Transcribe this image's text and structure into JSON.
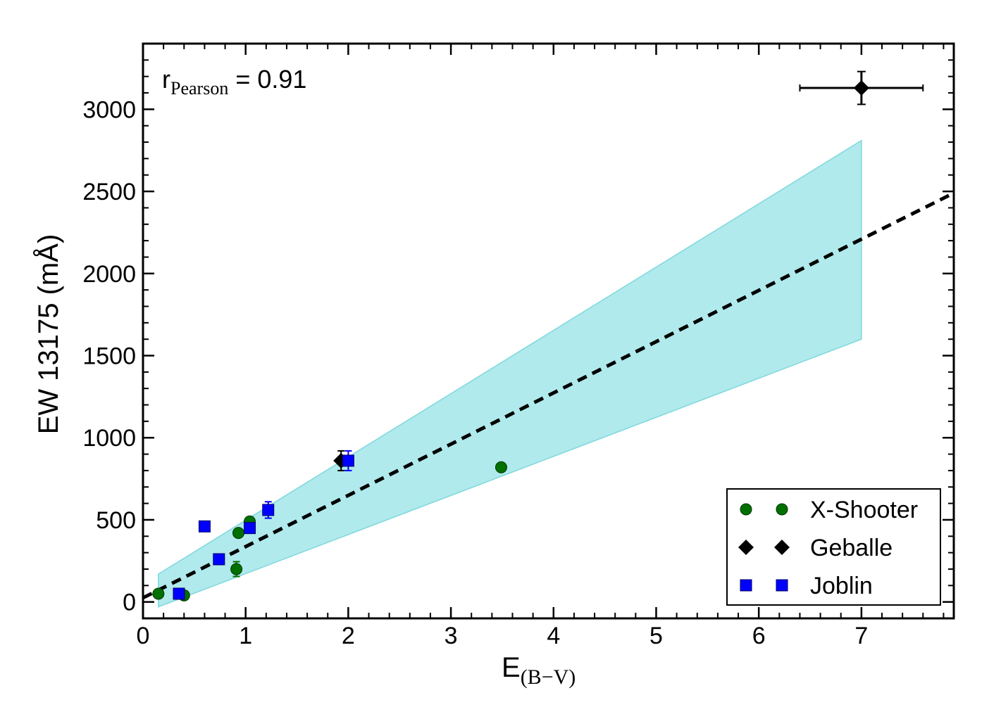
{
  "chart_data": {
    "type": "scatter",
    "xlim": [
      0,
      7.9
    ],
    "ylim": [
      -100,
      3400
    ],
    "x_ticks": [
      0,
      1,
      2,
      3,
      4,
      5,
      6,
      7
    ],
    "x_tick_labels": [
      "0",
      "1",
      "2",
      "3",
      "4",
      "5",
      "6",
      "7"
    ],
    "y_ticks": [
      0,
      500,
      1000,
      1500,
      2000,
      2500,
      3000
    ],
    "y_tick_labels": [
      "0",
      "500",
      "1000",
      "1500",
      "2000",
      "2500",
      "3000"
    ],
    "xlabel": {
      "main": "E",
      "sub": "(B−V)"
    },
    "ylabel": "EW 13175 (mÅ)",
    "annotation": {
      "r": "r",
      "sub": "Pearson",
      "rest": " = 0.91"
    },
    "series": [
      {
        "name": "X-Shooter",
        "marker": "circle",
        "color": "#007000",
        "points": [
          {
            "x": 0.15,
            "y": 50,
            "err": 15
          },
          {
            "x": 0.4,
            "y": 40,
            "err": 15
          },
          {
            "x": 0.91,
            "y": 200,
            "err": 45
          },
          {
            "x": 0.93,
            "y": 420,
            "err": 20
          },
          {
            "x": 1.04,
            "y": 490,
            "err": 20
          },
          {
            "x": 3.49,
            "y": 820,
            "err": 20
          }
        ]
      },
      {
        "name": "Geballe",
        "marker": "diamond",
        "color": "#000000",
        "points": [
          {
            "x": 1.93,
            "y": 860,
            "err": 60
          }
        ]
      },
      {
        "name": "Joblin",
        "marker": "square",
        "color": "#0000ff",
        "points": [
          {
            "x": 0.35,
            "y": 50,
            "err": 15
          },
          {
            "x": 0.6,
            "y": 460,
            "err": 15
          },
          {
            "x": 0.74,
            "y": 260,
            "err": 15
          },
          {
            "x": 1.04,
            "y": 450,
            "err": 20
          },
          {
            "x": 1.22,
            "y": 560,
            "err": 50
          },
          {
            "x": 2.0,
            "y": 860,
            "err": 60
          }
        ]
      }
    ],
    "fit_line": {
      "style": "dashed",
      "color": "#000000",
      "x": [
        0,
        7.9
      ],
      "y": [
        25,
        2490
      ]
    },
    "confidence_band": {
      "color": "#b0eaec",
      "edge_color": "#7ed8dc",
      "x": [
        0.15,
        7.0
      ],
      "upper": [
        170,
        2810
      ],
      "lower": [
        -30,
        1600
      ]
    },
    "error_sample": {
      "x": 7.0,
      "y": 3130,
      "xerr": [
        0.6,
        0.6
      ],
      "yerr": 100,
      "color": "#000000"
    },
    "legend": {
      "position": "lower-right",
      "entries": [
        "X-Shooter",
        "Geballe",
        "Joblin"
      ]
    }
  }
}
